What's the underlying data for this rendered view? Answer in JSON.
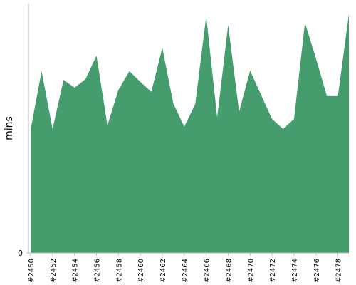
{
  "chart_data": {
    "type": "area",
    "y_label": "mins",
    "categories": [
      "#2450",
      null,
      "#2452",
      null,
      "#2454",
      null,
      "#2456",
      null,
      "#2458",
      null,
      "#2460",
      null,
      "#2462",
      null,
      "#2464",
      null,
      "#2466",
      null,
      "#2468",
      null,
      "#2470",
      null,
      "#2472",
      null,
      "#2474",
      null,
      "#2476",
      null,
      "#2478",
      null
    ],
    "values": [
      49.4,
      72.9,
      49.7,
      69.4,
      66.3,
      69.7,
      79.1,
      51.1,
      65.4,
      72.9,
      68.6,
      64.6,
      82.3,
      60,
      50.6,
      59.7,
      94.9,
      54.3,
      91.4,
      56.6,
      73.1,
      63.4,
      53.7,
      49.7,
      53.7,
      92.3,
      78,
      62.9,
      62.9,
      95.7
    ],
    "color": "#459c6c",
    "ylim": [
      0,
      100
    ],
    "yticks": [
      0
    ]
  }
}
